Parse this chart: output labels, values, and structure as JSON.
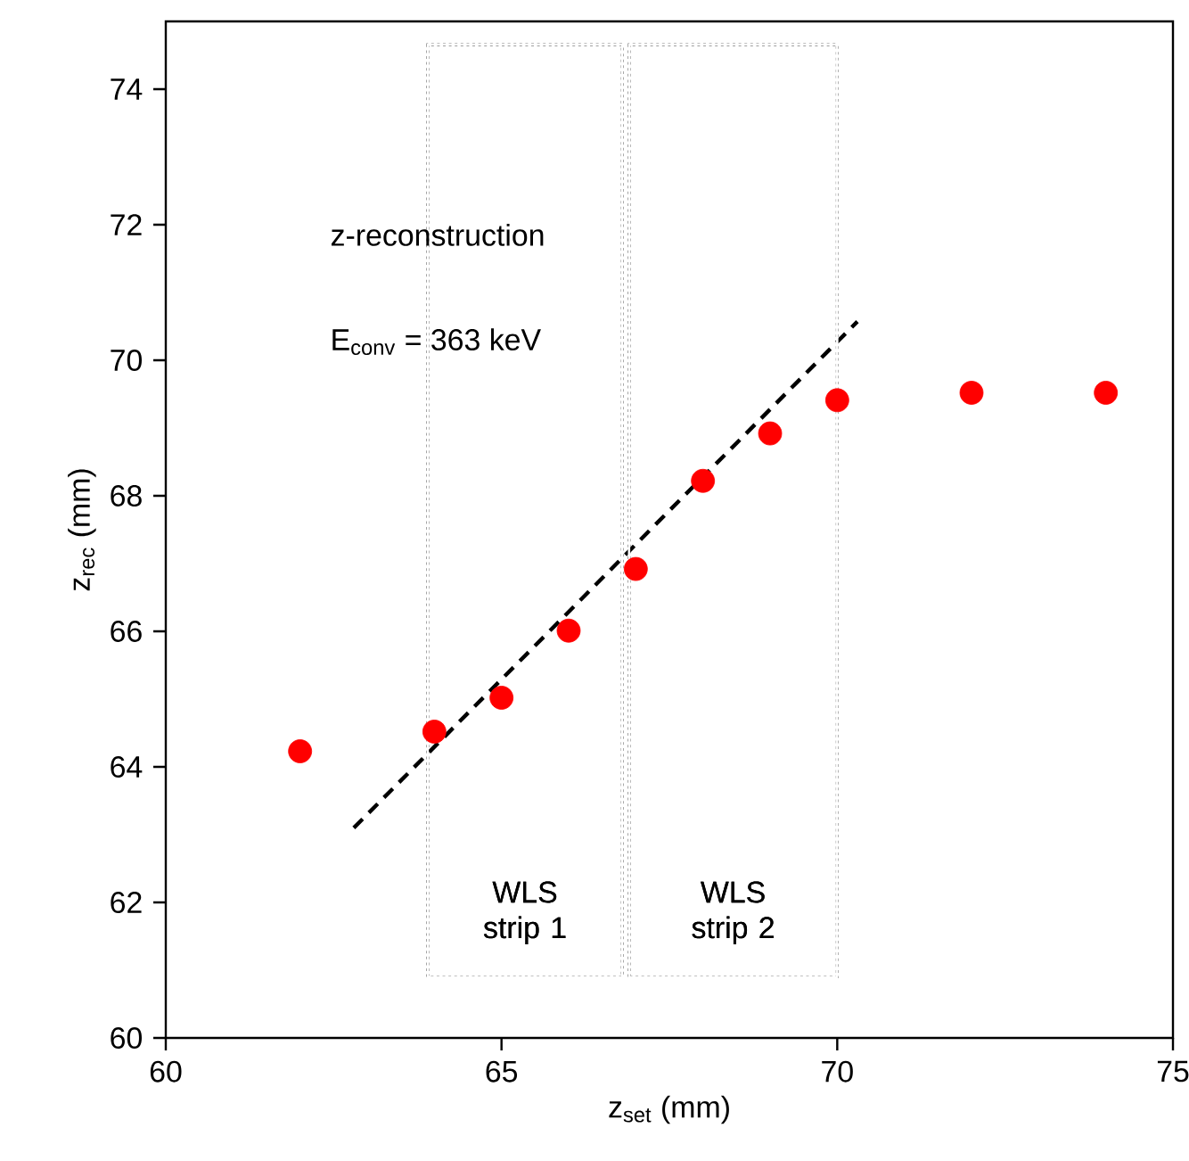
{
  "chart_data": {
    "type": "scatter",
    "xlabel": "z$_{set}$ (mm)",
    "ylabel": "z$_{rec}$ (mm)",
    "xlim": [
      60,
      75
    ],
    "xticks": [
      60,
      65,
      70,
      75
    ],
    "ylim": [
      60,
      75
    ],
    "yticks": [
      60,
      62,
      64,
      66,
      68,
      70,
      72,
      74
    ],
    "annotations": [
      "z-reconstruction",
      "E$_{conv}$ = 363 keV"
    ],
    "bands": [
      {
        "axis": "x",
        "from": 63.9,
        "to": 66.8,
        "label": "WLS strip 1",
        "color": "#ffffff"
      },
      {
        "axis": "x",
        "from": 66.9,
        "to": 70.0,
        "label": "WLS strip 2",
        "color": "#ffffff"
      }
    ],
    "series": [
      {
        "type": "scatter",
        "color": "#ff0000",
        "marker": "circle",
        "x": [
          62,
          64,
          65,
          66,
          67,
          68,
          69,
          70,
          72,
          74
        ],
        "values": [
          64.23,
          64.52,
          65.02,
          66.01,
          66.92,
          68.22,
          68.92,
          69.41,
          69.52,
          69.52
        ]
      },
      {
        "type": "line",
        "color": "#000000",
        "line_style": "dashed",
        "x": [
          62.8,
          70.3
        ],
        "values": [
          63.1,
          70.57
        ]
      }
    ]
  }
}
